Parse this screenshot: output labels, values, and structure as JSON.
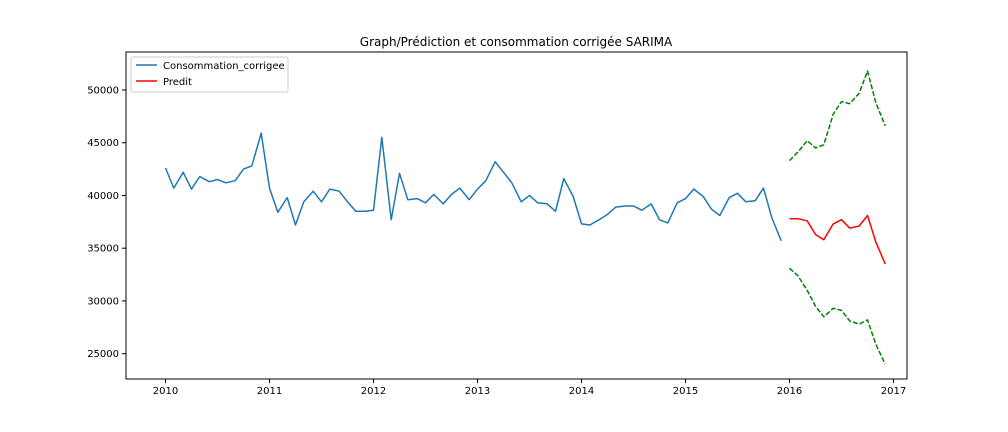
{
  "chart_data": {
    "type": "line",
    "title": "Graph/Prédiction et consommation corrigée SARIMA",
    "xlabel": "",
    "ylabel": "",
    "xlim": [
      2009.62,
      2017.13
    ],
    "ylim": [
      22600,
      53600
    ],
    "x_ticks": [
      2010,
      2011,
      2012,
      2013,
      2014,
      2015,
      2016,
      2017
    ],
    "y_ticks": [
      25000,
      30000,
      35000,
      40000,
      45000,
      50000
    ],
    "grid": false,
    "legend_placement": "upper-left",
    "legend": [
      "Consommation_corrigee",
      "Predit"
    ],
    "series": [
      {
        "name": "Consommation_corrigee",
        "color": "#1f77b4",
        "style": "solid",
        "x": [
          2010.0,
          2010.08,
          2010.17,
          2010.25,
          2010.33,
          2010.42,
          2010.5,
          2010.58,
          2010.67,
          2010.75,
          2010.83,
          2010.92,
          2011.0,
          2011.08,
          2011.17,
          2011.25,
          2011.33,
          2011.42,
          2011.5,
          2011.58,
          2011.67,
          2011.75,
          2011.83,
          2011.92,
          2012.0,
          2012.08,
          2012.17,
          2012.25,
          2012.33,
          2012.42,
          2012.5,
          2012.58,
          2012.67,
          2012.75,
          2012.83,
          2012.92,
          2013.0,
          2013.08,
          2013.17,
          2013.25,
          2013.33,
          2013.42,
          2013.5,
          2013.58,
          2013.67,
          2013.75,
          2013.83,
          2013.92,
          2014.0,
          2014.08,
          2014.17,
          2014.25,
          2014.33,
          2014.42,
          2014.5,
          2014.58,
          2014.67,
          2014.75,
          2014.83,
          2014.92,
          2015.0,
          2015.08,
          2015.17,
          2015.25,
          2015.33,
          2015.42,
          2015.5,
          2015.58,
          2015.67,
          2015.75,
          2015.83,
          2015.92
        ],
        "values": [
          42600,
          40700,
          42200,
          40600,
          41800,
          41300,
          41500,
          41200,
          41400,
          42500,
          42800,
          45900,
          40700,
          38400,
          39800,
          37200,
          39400,
          40400,
          39400,
          40600,
          40400,
          39400,
          38500,
          38500,
          38600,
          45500,
          37700,
          42100,
          39600,
          39700,
          39300,
          40100,
          39200,
          40100,
          40700,
          39600,
          40600,
          41400,
          43200,
          42200,
          41200,
          39400,
          40000,
          39300,
          39200,
          38500,
          41600,
          39900,
          37300,
          37200,
          37700,
          38200,
          38900,
          39000,
          39000,
          38600,
          39200,
          37700,
          37400,
          39300,
          39700,
          40600,
          39900,
          38700,
          38100,
          39800,
          40200,
          39400,
          39500,
          40700,
          37900,
          35700
        ]
      },
      {
        "name": "Predit",
        "color": "#ff0000",
        "style": "solid",
        "x": [
          2016.0,
          2016.08,
          2016.17,
          2016.25,
          2016.33,
          2016.42,
          2016.5,
          2016.58,
          2016.67,
          2016.75,
          2016.83,
          2016.92
        ],
        "values": [
          37800,
          37800,
          37600,
          36300,
          35800,
          37300,
          37700,
          36900,
          37100,
          38100,
          35600,
          33500
        ]
      },
      {
        "color": "#008000",
        "style": "dashed",
        "x": [
          2016.0,
          2016.08,
          2016.17,
          2016.25,
          2016.33,
          2016.42,
          2016.5,
          2016.58,
          2016.67,
          2016.75,
          2016.83,
          2016.92
        ],
        "values": [
          43300,
          44100,
          45200,
          44500,
          44800,
          47700,
          48900,
          48700,
          49700,
          51800,
          48800,
          46600
        ]
      },
      {
        "color": "#008000",
        "style": "dashed",
        "x": [
          2016.0,
          2016.08,
          2016.17,
          2016.25,
          2016.33,
          2016.42,
          2016.5,
          2016.58,
          2016.67,
          2016.75,
          2016.83,
          2016.92
        ],
        "values": [
          33100,
          32400,
          31000,
          29500,
          28500,
          29300,
          29100,
          28100,
          27800,
          28200,
          25900,
          24000
        ]
      }
    ]
  }
}
